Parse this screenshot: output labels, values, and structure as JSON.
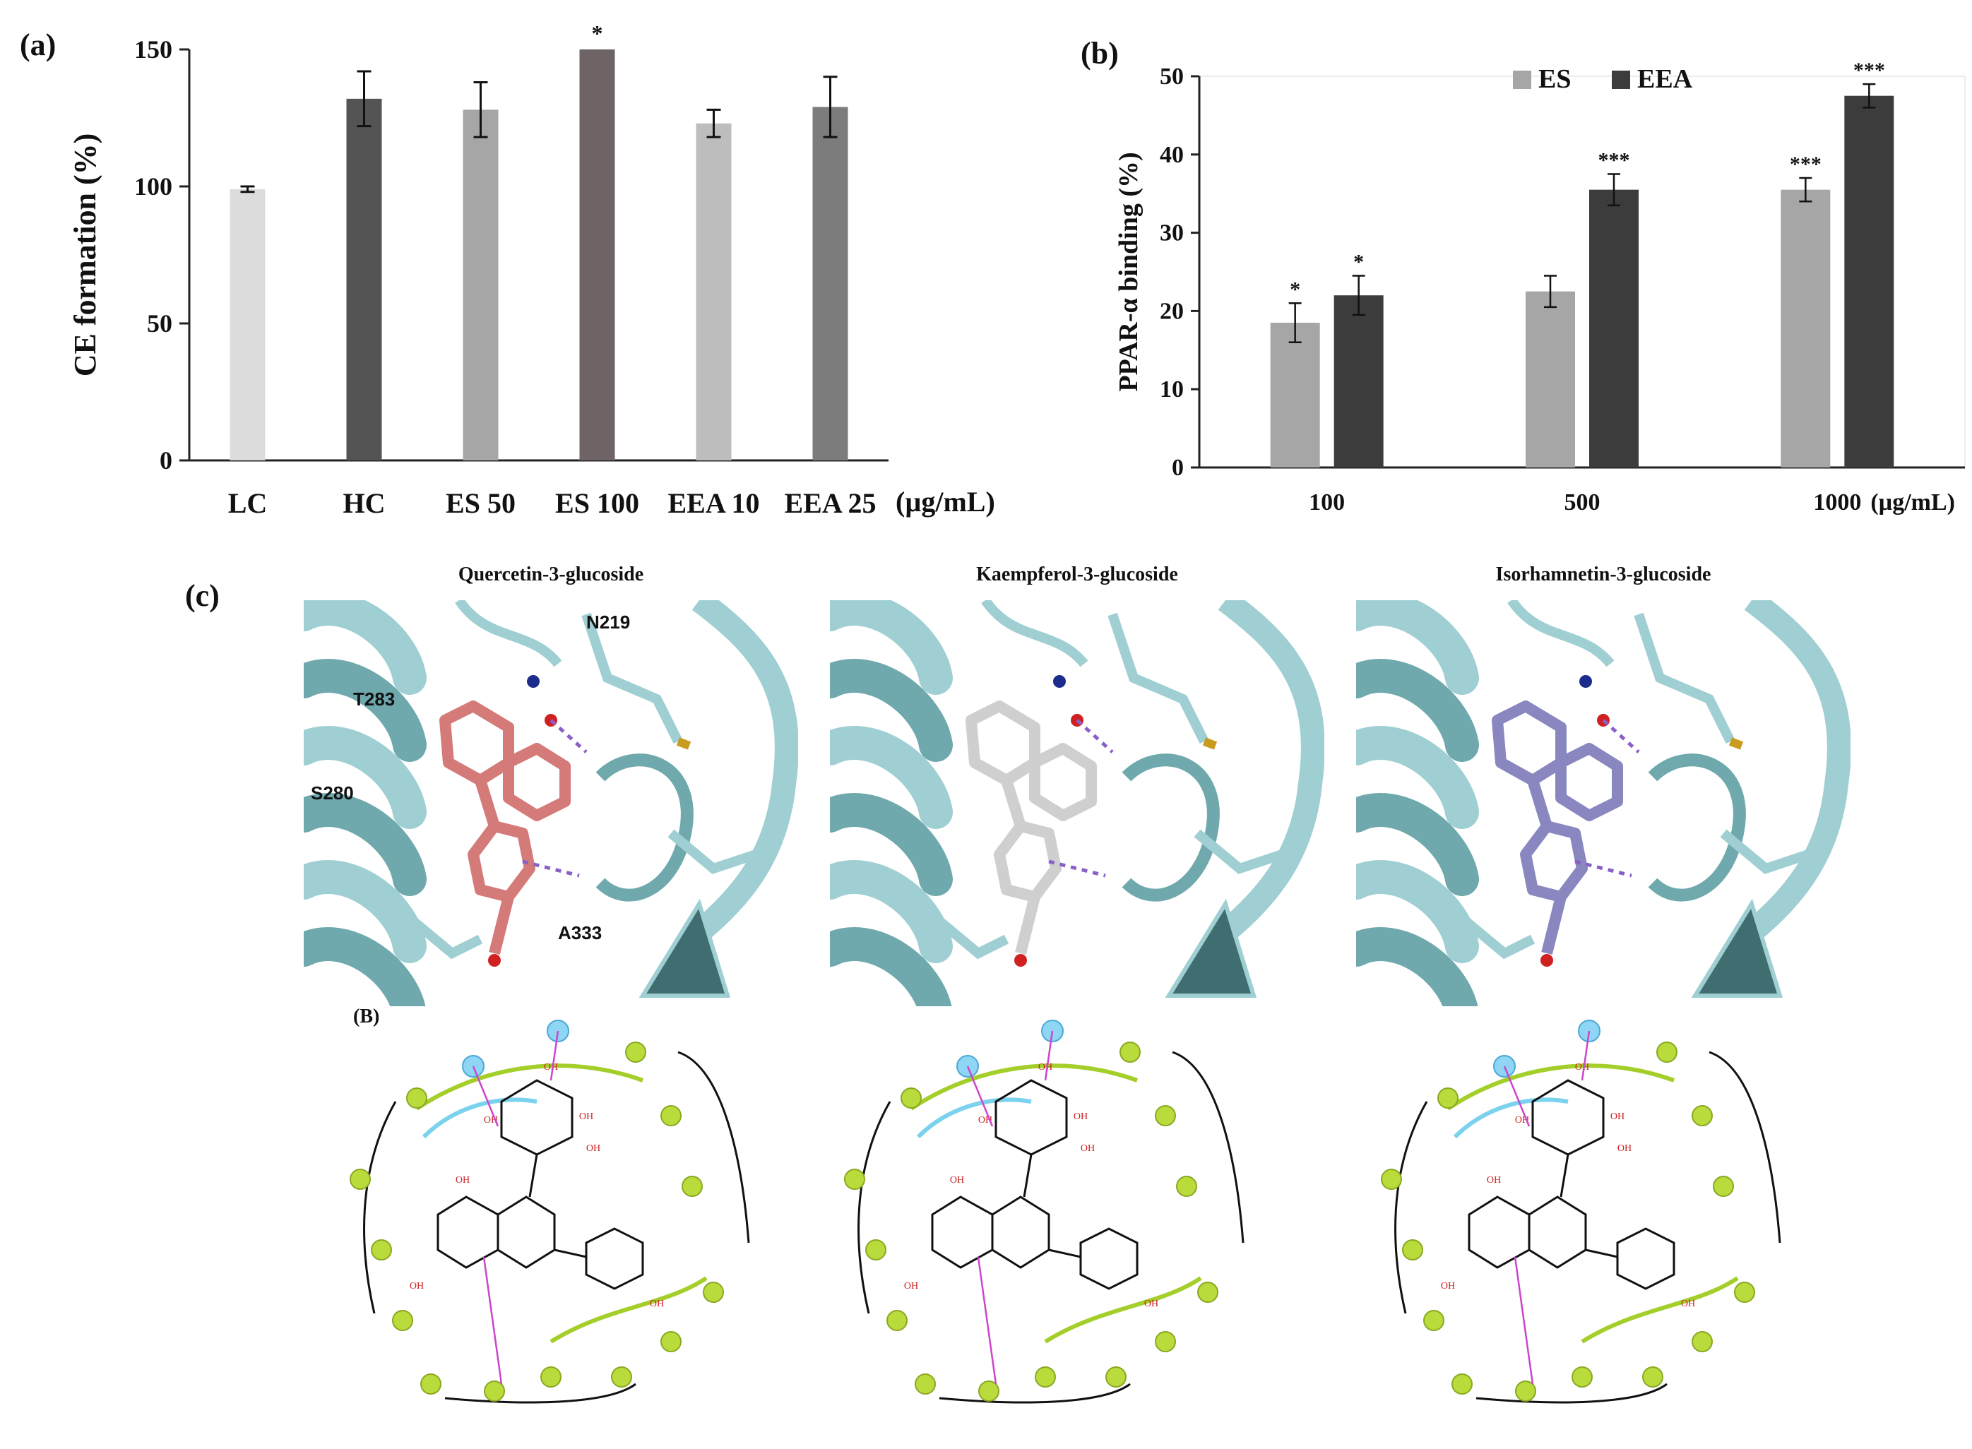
{
  "panels": {
    "a_label": "(a)",
    "b_label": "(b)",
    "c_label": "(c)",
    "B_label": "(B)"
  },
  "chart_a": {
    "type": "bar",
    "ylabel": "CE formation (%)",
    "unit_label": "(µg/mL)",
    "categories": [
      "LC",
      "HC",
      "ES 50",
      "ES 100",
      "EEA 10",
      "EEA 25"
    ],
    "values": [
      99,
      132,
      128,
      150,
      123,
      129
    ],
    "errors": [
      1,
      10,
      10,
      0,
      5,
      11
    ],
    "significance": [
      "",
      "",
      "",
      "*",
      "",
      ""
    ],
    "colors": [
      "#dcdcdc",
      "#545454",
      "#a6a6a6",
      "#6e6466",
      "#bdbdbd",
      "#7c7c7c"
    ],
    "ylim": [
      0,
      150
    ],
    "yticks": [
      0,
      50,
      100,
      150
    ]
  },
  "chart_b": {
    "type": "bar",
    "ylabel": "PPAR-α binding (%)",
    "unit_label": "(µg/mL)",
    "categories": [
      "100",
      "500",
      "1000"
    ],
    "series": [
      {
        "name": "ES",
        "color": "#a6a6a6",
        "values": [
          18.5,
          22.5,
          35.5
        ],
        "errors": [
          2.5,
          2,
          1.5
        ],
        "significance": [
          "*",
          "",
          "***"
        ]
      },
      {
        "name": "EEA",
        "color": "#3c3c3c",
        "values": [
          22,
          35.5,
          47.5
        ],
        "errors": [
          2.5,
          2,
          1.5
        ],
        "significance": [
          "*",
          "***",
          "***"
        ]
      }
    ],
    "ylim": [
      0,
      50
    ],
    "yticks": [
      0,
      10,
      20,
      30,
      40,
      50
    ],
    "legend": "top-center"
  },
  "structures": [
    {
      "title": "Quercetin-3-glucoside",
      "ligand_color": "#d47a78"
    },
    {
      "title": "Kaempferol-3-glucoside",
      "ligand_color": "#cfcfcf"
    },
    {
      "title": "Isorhamnetin-3-glucoside",
      "ligand_color": "#8a86c0"
    }
  ],
  "residues": {
    "n219": "N219",
    "t283": "T283",
    "s280": "S280",
    "a333": "A333"
  },
  "glyphs": {
    "oh": "OH",
    "o": "O"
  }
}
